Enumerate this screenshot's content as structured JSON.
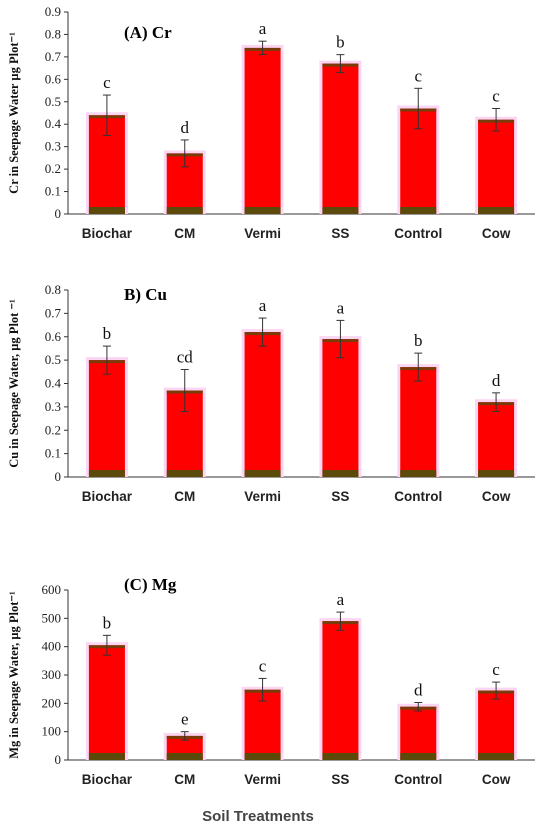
{
  "x_axis_title": "Soil Treatments",
  "chart_data": [
    {
      "type": "bar",
      "title": "(A) Cr",
      "ylabel": "Cr in Seepage Water µg Plot⁻¹",
      "categories": [
        "Biochar",
        "CM",
        "Vermi",
        "SS",
        "Control",
        "Cow"
      ],
      "values": [
        0.44,
        0.27,
        0.74,
        0.67,
        0.47,
        0.42
      ],
      "errors": [
        0.09,
        0.06,
        0.03,
        0.04,
        0.09,
        0.05
      ],
      "letters": [
        "c",
        "d",
        "a",
        "b",
        "c",
        "c"
      ],
      "ylim": [
        0,
        0.9
      ],
      "yticks": [
        "0",
        "0.1",
        "0.2",
        "0.3",
        "0.4",
        "0.5",
        "0.6",
        "0.7",
        "0.8",
        "0.9"
      ],
      "bar_color": "#ff0000"
    },
    {
      "type": "bar",
      "title": "B) Cu",
      "ylabel": "Cu in Seepage Water, µg Plot ⁻¹",
      "categories": [
        "Biochar",
        "CM",
        "Vermi",
        "SS",
        "Control",
        "Cow"
      ],
      "values": [
        0.5,
        0.37,
        0.62,
        0.59,
        0.47,
        0.32
      ],
      "errors": [
        0.06,
        0.09,
        0.06,
        0.08,
        0.06,
        0.04
      ],
      "letters": [
        "b",
        "cd",
        "a",
        "a",
        "b",
        "d"
      ],
      "ylim": [
        0,
        0.8
      ],
      "yticks": [
        "0",
        "0.1",
        "0.2",
        "0.3",
        "0.4",
        "0.5",
        "0.6",
        "0.7",
        "0.8"
      ],
      "bar_color": "#ff0000"
    },
    {
      "type": "bar",
      "title": "(C) Mg",
      "ylabel": "Mg in Seepage Water, µg Plot⁻¹",
      "categories": [
        "Biochar",
        "CM",
        "Vermi",
        "SS",
        "Control",
        "Cow"
      ],
      "values": [
        405,
        85,
        248,
        490,
        188,
        245
      ],
      "errors": [
        35,
        15,
        40,
        32,
        15,
        30
      ],
      "letters": [
        "b",
        "e",
        "c",
        "a",
        "d",
        "c"
      ],
      "ylim": [
        0,
        600
      ],
      "yticks": [
        "0",
        "100",
        "200",
        "300",
        "400",
        "500",
        "600"
      ],
      "bar_color": "#ff0000"
    }
  ]
}
